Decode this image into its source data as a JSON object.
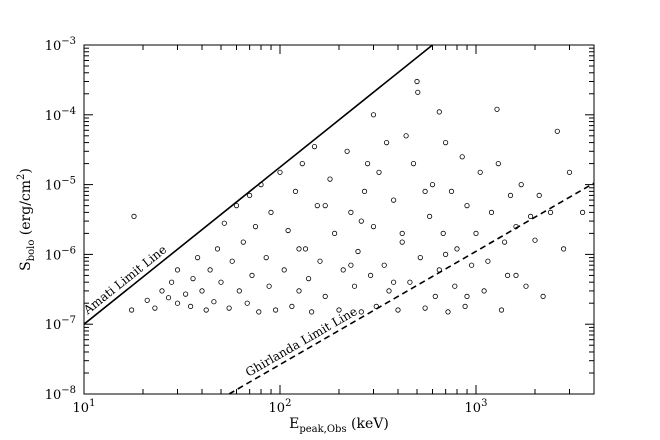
{
  "chart_data": {
    "type": "scatter",
    "title": "",
    "xlabel": {
      "main": "E",
      "sub": "peak,Obs",
      "suffix": " (keV)"
    },
    "ylabel": {
      "main": "S",
      "sub": "bolo",
      "suffix": " (erg/cm",
      "sup": "2",
      "end": ")"
    },
    "x_scale": "log",
    "y_scale": "log",
    "xlim": [
      10,
      4000
    ],
    "ylim": [
      1e-08,
      0.001
    ],
    "grid": false,
    "x_ticks": [
      {
        "value": 10,
        "base": "10",
        "exp": "1"
      },
      {
        "value": 100,
        "base": "10",
        "exp": "2"
      },
      {
        "value": 1000,
        "base": "10",
        "exp": "3"
      }
    ],
    "y_ticks": [
      {
        "value": 1e-08,
        "base": "10",
        "exp": "−8"
      },
      {
        "value": 1e-07,
        "base": "10",
        "exp": "−7"
      },
      {
        "value": 1e-06,
        "base": "10",
        "exp": "−6"
      },
      {
        "value": 1e-05,
        "base": "10",
        "exp": "−5"
      },
      {
        "value": 0.0001,
        "base": "10",
        "exp": "−4"
      },
      {
        "value": 0.001,
        "base": "10",
        "exp": "−3"
      }
    ],
    "reference_lines": [
      {
        "label": "Amati Limit Line",
        "style": "solid",
        "points": [
          [
            10,
            1e-07
          ],
          [
            600,
            0.001
          ]
        ]
      },
      {
        "label": "Ghirlanda Limit Line",
        "style": "dashed",
        "points": [
          [
            55,
            1e-08
          ],
          [
            4000,
            1.05e-05
          ]
        ]
      }
    ],
    "series": [
      {
        "marker": "open-circle",
        "points": [
          [
            18,
            3.5e-06
          ],
          [
            17.5,
            1.6e-07
          ],
          [
            21,
            2.2e-07
          ],
          [
            23,
            1.7e-07
          ],
          [
            25,
            3e-07
          ],
          [
            27,
            2.4e-07
          ],
          [
            28,
            4e-07
          ],
          [
            30,
            2e-07
          ],
          [
            30,
            6e-07
          ],
          [
            33,
            2.7e-07
          ],
          [
            35,
            1.8e-07
          ],
          [
            36,
            4.5e-07
          ],
          [
            38,
            9e-07
          ],
          [
            40,
            3e-07
          ],
          [
            42,
            1.6e-07
          ],
          [
            44,
            6e-07
          ],
          [
            46,
            2.1e-07
          ],
          [
            48,
            1.2e-06
          ],
          [
            50,
            4e-07
          ],
          [
            52,
            2.8e-06
          ],
          [
            55,
            1.7e-07
          ],
          [
            57,
            8e-07
          ],
          [
            60,
            5e-06
          ],
          [
            62,
            3e-07
          ],
          [
            65,
            1.5e-06
          ],
          [
            68,
            2e-07
          ],
          [
            70,
            7e-06
          ],
          [
            72,
            5e-07
          ],
          [
            75,
            2.5e-06
          ],
          [
            78,
            1.5e-07
          ],
          [
            80,
            1e-05
          ],
          [
            85,
            9e-07
          ],
          [
            88,
            3.5e-07
          ],
          [
            90,
            4e-06
          ],
          [
            95,
            1.6e-07
          ],
          [
            100,
            1.5e-05
          ],
          [
            105,
            6e-07
          ],
          [
            110,
            2.2e-06
          ],
          [
            115,
            1.8e-07
          ],
          [
            120,
            8e-06
          ],
          [
            125,
            3e-07
          ],
          [
            130,
            2e-05
          ],
          [
            135,
            1.2e-06
          ],
          [
            140,
            4.5e-07
          ],
          [
            145,
            1.5e-07
          ],
          [
            150,
            3.5e-05
          ],
          [
            155,
            5e-06
          ],
          [
            160,
            8e-07
          ],
          [
            170,
            2.5e-07
          ],
          [
            180,
            1.2e-05
          ],
          [
            190,
            2e-06
          ],
          [
            200,
            1.6e-07
          ],
          [
            210,
            6e-07
          ],
          [
            220,
            3e-05
          ],
          [
            230,
            4e-06
          ],
          [
            240,
            3.5e-07
          ],
          [
            250,
            1.1e-06
          ],
          [
            260,
            1.5e-07
          ],
          [
            270,
            8e-06
          ],
          [
            280,
            2e-05
          ],
          [
            290,
            5e-07
          ],
          [
            300,
            2.5e-06
          ],
          [
            310,
            1.8e-07
          ],
          [
            320,
            1.5e-05
          ],
          [
            340,
            7e-07
          ],
          [
            350,
            4e-05
          ],
          [
            360,
            3e-07
          ],
          [
            380,
            6e-06
          ],
          [
            400,
            1.6e-07
          ],
          [
            420,
            1.5e-06
          ],
          [
            440,
            5e-05
          ],
          [
            460,
            4e-07
          ],
          [
            480,
            2e-05
          ],
          [
            500,
            0.0003
          ],
          [
            505,
            0.00021
          ],
          [
            520,
            9e-07
          ],
          [
            550,
            1.7e-07
          ],
          [
            580,
            3.5e-06
          ],
          [
            600,
            1e-05
          ],
          [
            620,
            2.5e-07
          ],
          [
            650,
            6e-07
          ],
          [
            680,
            2e-06
          ],
          [
            700,
            4e-05
          ],
          [
            720,
            1.5e-07
          ],
          [
            750,
            8e-06
          ],
          [
            780,
            3.5e-07
          ],
          [
            800,
            1.2e-06
          ],
          [
            850,
            2.5e-05
          ],
          [
            880,
            1.8e-07
          ],
          [
            900,
            5e-06
          ],
          [
            950,
            7e-07
          ],
          [
            1000,
            2e-06
          ],
          [
            1050,
            1.5e-05
          ],
          [
            1100,
            3e-07
          ],
          [
            1150,
            8e-07
          ],
          [
            1200,
            4e-06
          ],
          [
            1280,
            0.00012
          ],
          [
            1300,
            2e-05
          ],
          [
            1350,
            1.6e-07
          ],
          [
            1400,
            1.5e-06
          ],
          [
            1450,
            5e-07
          ],
          [
            1500,
            7e-06
          ],
          [
            1600,
            2.5e-06
          ],
          [
            1700,
            1e-05
          ],
          [
            1800,
            3.5e-07
          ],
          [
            1900,
            3.5e-06
          ],
          [
            2000,
            1.6e-06
          ],
          [
            2100,
            7e-06
          ],
          [
            2200,
            2.5e-07
          ],
          [
            2400,
            4e-06
          ],
          [
            2600,
            5.8e-05
          ],
          [
            2800,
            1.2e-06
          ],
          [
            3000,
            1.5e-05
          ],
          [
            3500,
            4e-06
          ],
          [
            300,
            0.0001
          ],
          [
            650,
            0.00011
          ],
          [
            420,
            2e-06
          ],
          [
            260,
            3e-06
          ],
          [
            170,
            5e-06
          ],
          [
            125,
            1.2e-06
          ],
          [
            230,
            7e-07
          ],
          [
            700,
            1e-06
          ],
          [
            550,
            8e-06
          ],
          [
            380,
            4e-07
          ],
          [
            900,
            2.5e-07
          ],
          [
            1600,
            5e-07
          ]
        ]
      }
    ]
  }
}
